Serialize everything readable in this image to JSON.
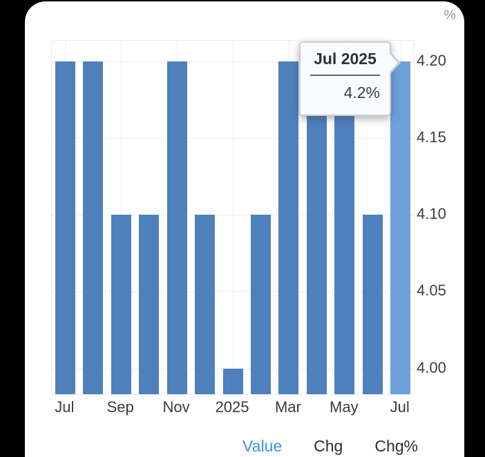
{
  "unit_label": "%",
  "tooltip": {
    "title": "Jul 2025",
    "value": "4.2%"
  },
  "footer": {
    "tabs": [
      {
        "id": "value",
        "label": "Value",
        "active": true
      },
      {
        "id": "chg",
        "label": "Chg",
        "active": false
      },
      {
        "id": "chgpct",
        "label": "Chg%",
        "active": false
      }
    ]
  },
  "colors": {
    "bar": "#4e80bc",
    "bar_highlight": "#6f9fd8",
    "accent_blue": "#3f90e0",
    "grid": "#d7d7d7",
    "axis_text": "#3d4043"
  },
  "chart_data": {
    "type": "bar",
    "title": "",
    "ylabel": "%",
    "xlabel": "",
    "categories": [
      "Jul 2024",
      "Aug 2024",
      "Sep 2024",
      "Oct 2024",
      "Nov 2024",
      "Dec 2024",
      "Jan 2025",
      "Feb 2025",
      "Mar 2025",
      "Apr 2025",
      "May 2025",
      "Jun 2025",
      "Jul 2025"
    ],
    "values": [
      4.2,
      4.2,
      4.1,
      4.1,
      4.2,
      4.1,
      4.0,
      4.1,
      4.2,
      4.2,
      4.2,
      4.1,
      4.2
    ],
    "highlighted_index": 12,
    "selected_point": {
      "category": "Jul 2025",
      "value": 4.2
    },
    "x_tick_labels": [
      {
        "index": 0,
        "label": "Jul"
      },
      {
        "index": 2,
        "label": "Sep"
      },
      {
        "index": 4,
        "label": "Nov"
      },
      {
        "index": 6,
        "label": "2025"
      },
      {
        "index": 8,
        "label": "Mar"
      },
      {
        "index": 10,
        "label": "May"
      },
      {
        "index": 12,
        "label": "Jul"
      }
    ],
    "y_ticks": [
      {
        "value": 4.0,
        "label": "4.00"
      },
      {
        "value": 4.05,
        "label": "4.05"
      },
      {
        "value": 4.1,
        "label": "4.10"
      },
      {
        "value": 4.15,
        "label": "4.15"
      },
      {
        "value": 4.2,
        "label": "4.20"
      }
    ],
    "ylim": [
      3.983,
      4.213
    ],
    "grid": "dotted",
    "legend_position": "none"
  }
}
